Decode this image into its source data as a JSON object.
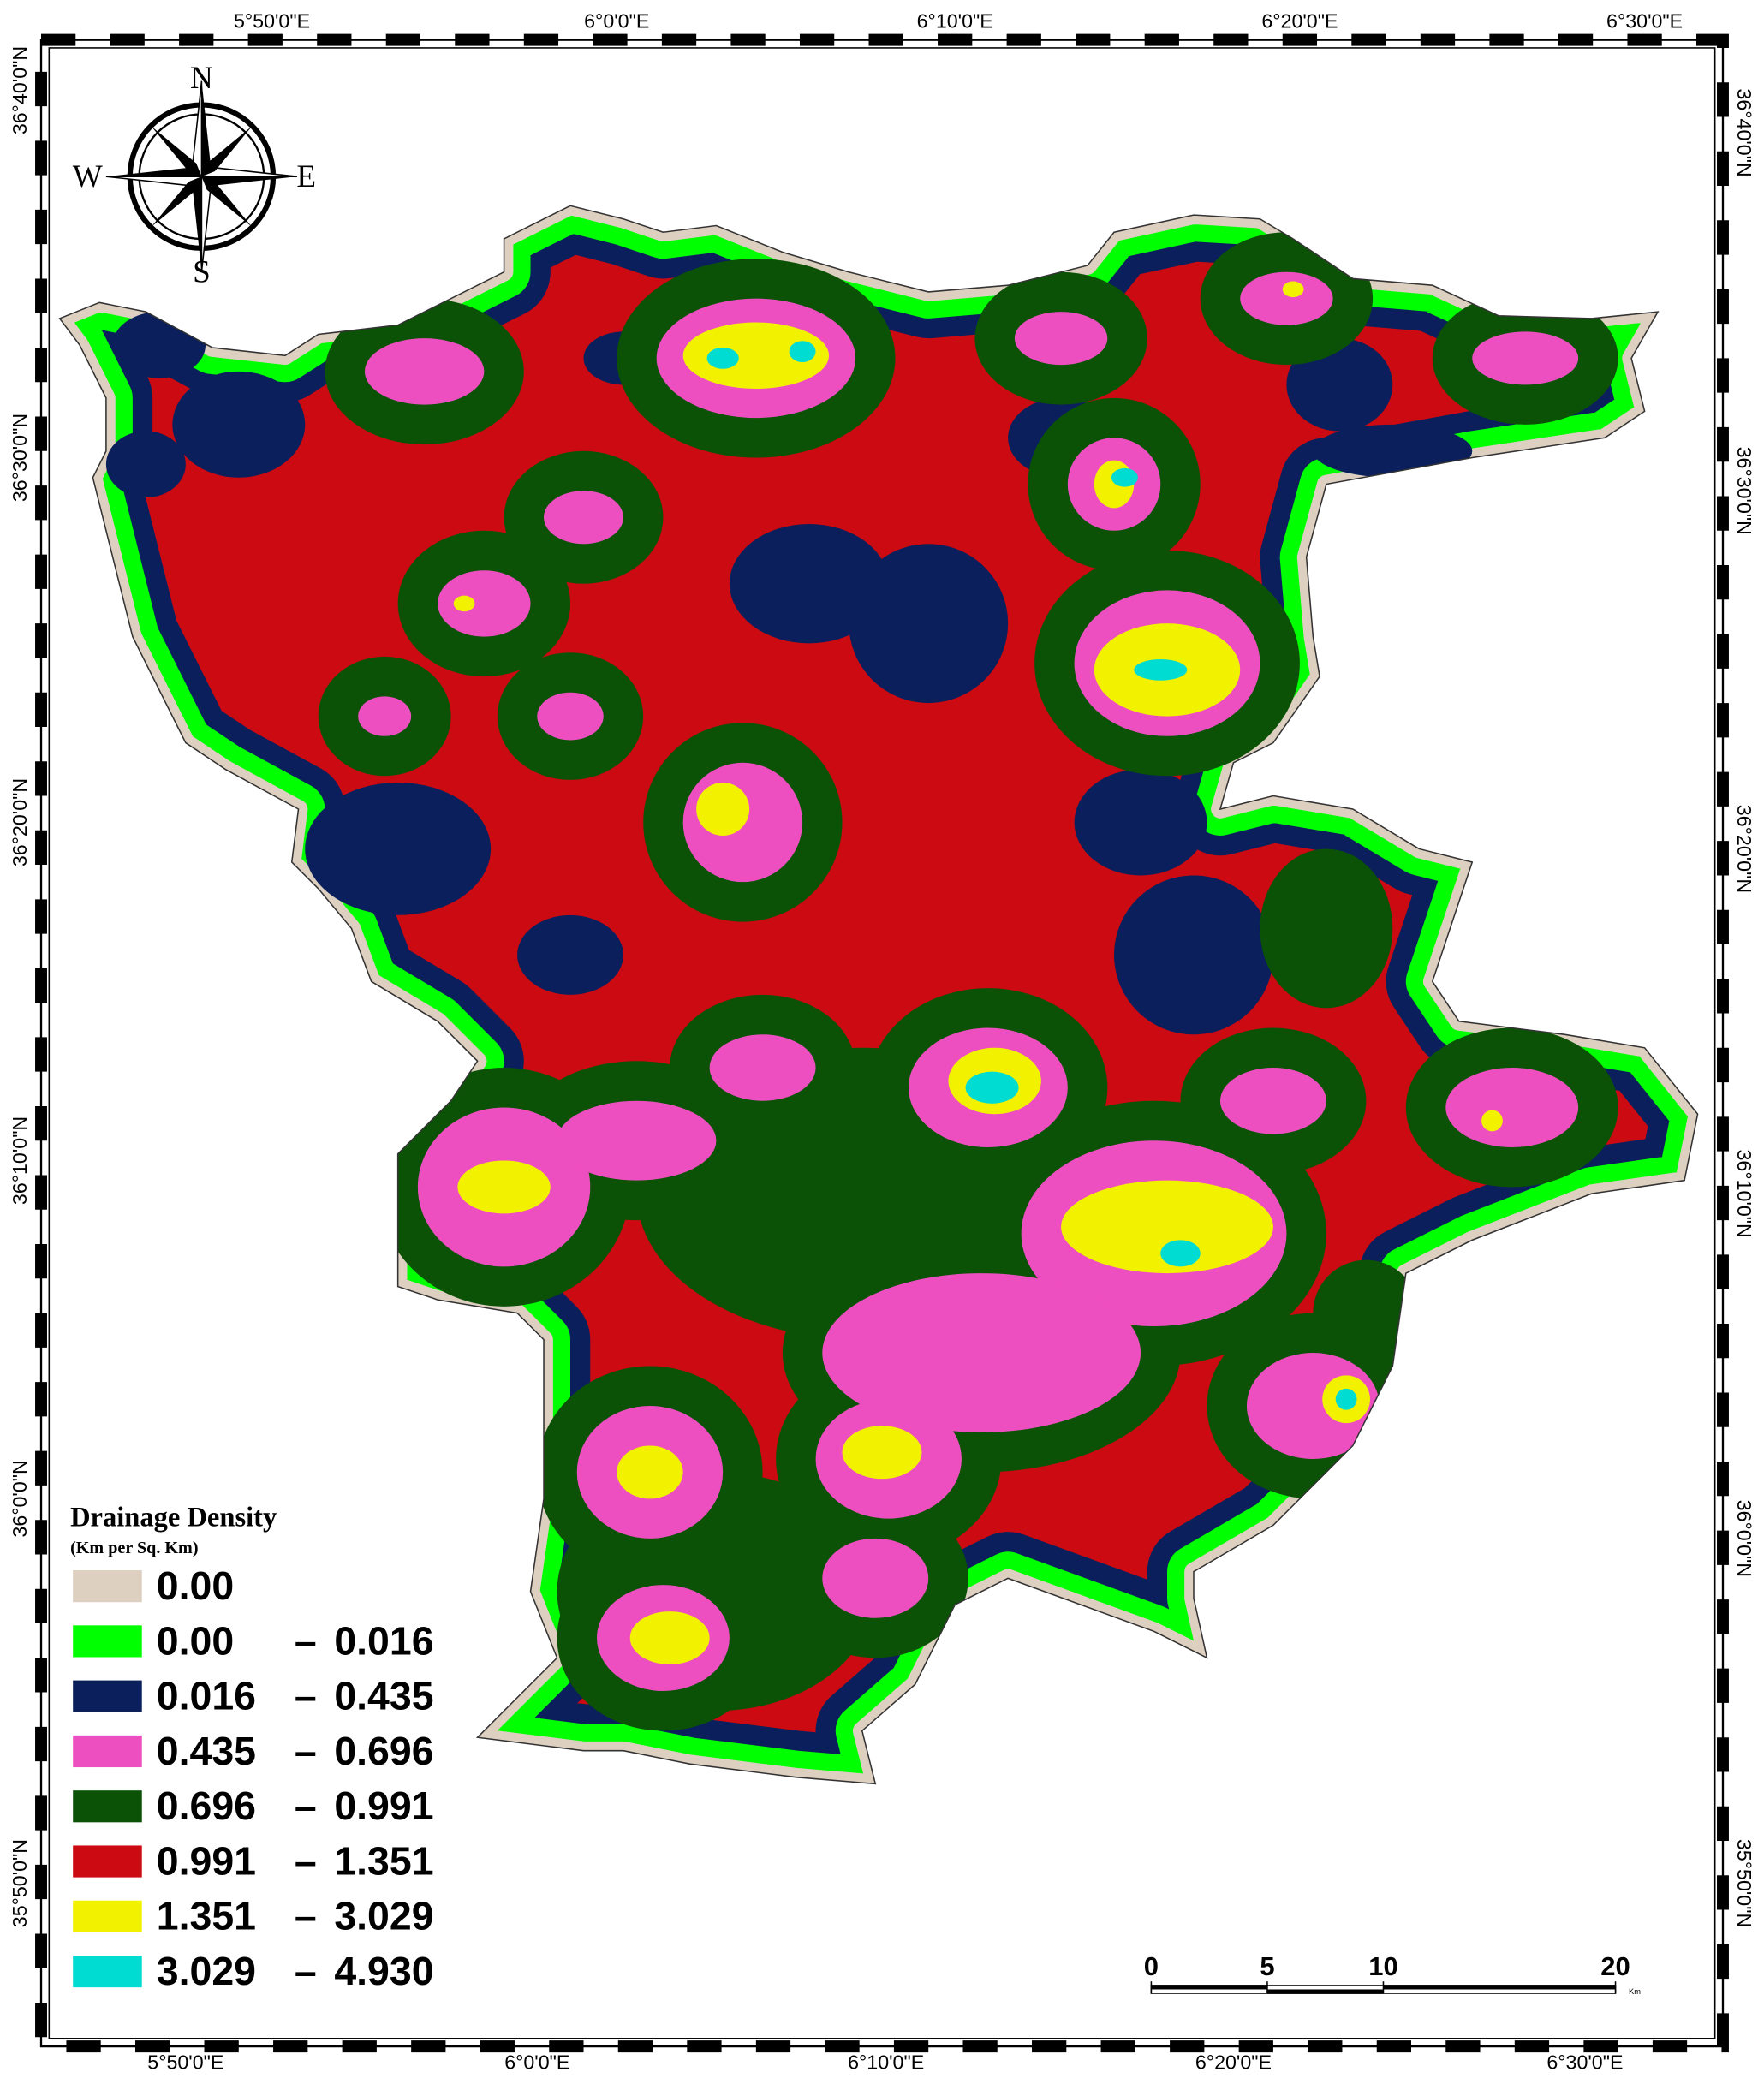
{
  "map": {
    "top_labels": [
      "5°50'0\"E",
      "6°0'0\"E",
      "6°10'0\"E",
      "6°20'0\"E",
      "6°30'0\"E"
    ],
    "bottom_labels": [
      "5°50'0\"E",
      "6°0'0\"E",
      "6°10'0\"E",
      "6°20'0\"E",
      "6°30'0\"E"
    ],
    "left_labels": [
      "36°40'0\"N",
      "36°30'0\"N",
      "36°20'0\"N",
      "36°10'0\"N",
      "36°0'0\"N",
      "35°50'0\"N"
    ],
    "right_labels": [
      "36°40'0\"N",
      "36°30'0\"N",
      "36°20'0\"N",
      "36°10'0\"N",
      "36°0'0\"N",
      "35°50'0\"N"
    ],
    "compass": {
      "n": "N",
      "s": "S",
      "e": "E",
      "w": "W"
    },
    "legend": {
      "title": "Drainage Density",
      "subtitle": "(Km per Sq. Km)",
      "separator": "–",
      "items": [
        {
          "from": "0.00",
          "color": "#ddd0c0"
        },
        {
          "from": "0.00",
          "to": "0.016",
          "color": "#00ff00"
        },
        {
          "from": "0.016",
          "to": "0.435",
          "color": "#0a1f5c"
        },
        {
          "from": "0.435",
          "to": "0.696",
          "color": "#ee4fc0"
        },
        {
          "from": "0.696",
          "to": "0.991",
          "color": "#0b5206"
        },
        {
          "from": "0.991",
          "to": "1.351",
          "color": "#cc0a12"
        },
        {
          "from": "1.351",
          "to": "3.029",
          "color": "#f2f200"
        },
        {
          "from": "3.029",
          "to": "4.930",
          "color": "#00dcd2"
        }
      ]
    },
    "scale_bar": {
      "ticks": [
        0,
        5,
        10,
        20
      ],
      "unit": "Km"
    }
  }
}
